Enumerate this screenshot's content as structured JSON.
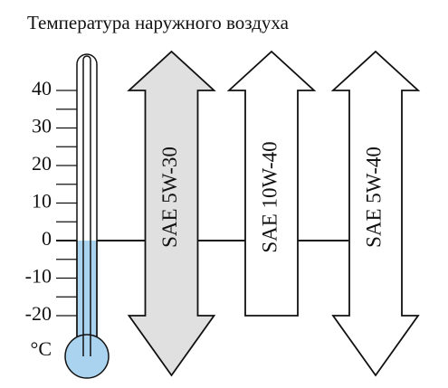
{
  "title": "Температура наружного воздуха",
  "scale": {
    "unit": "°C",
    "ticks": [
      40,
      30,
      20,
      10,
      0,
      -10,
      -20
    ],
    "level": 0
  },
  "grades": [
    {
      "label": "SAE 5W-30",
      "low": -20,
      "high": 40,
      "open_low": true,
      "open_high": true,
      "fill": "#e0e0e0"
    },
    {
      "label": "SAE 10W-40",
      "low": -20,
      "high": 40,
      "open_low": false,
      "open_high": true,
      "fill": "#ffffff"
    },
    {
      "label": "SAE 5W-40",
      "low": -20,
      "high": 40,
      "open_low": true,
      "open_high": true,
      "fill": "#ffffff"
    }
  ]
}
